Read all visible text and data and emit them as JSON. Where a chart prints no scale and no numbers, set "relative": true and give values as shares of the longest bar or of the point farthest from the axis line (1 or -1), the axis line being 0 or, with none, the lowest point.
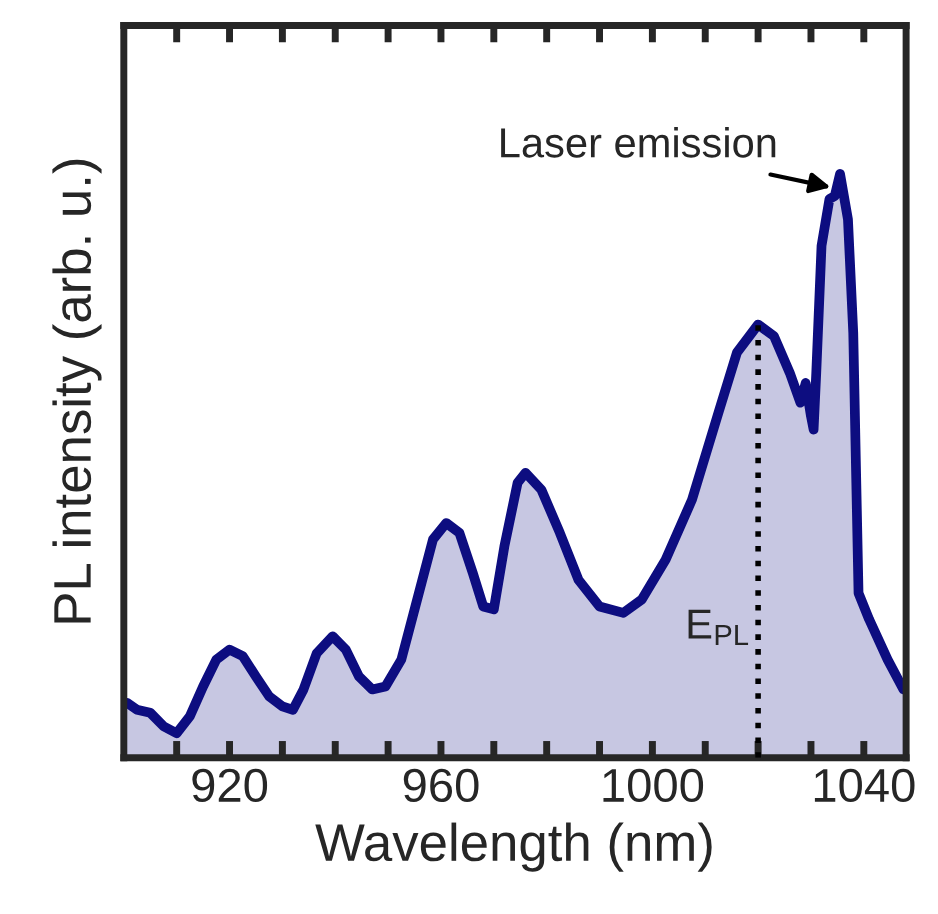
{
  "chart_data": {
    "type": "area",
    "xlabel": "Wavelength (nm)",
    "ylabel": "PL intensity (arb. u.)",
    "relative": true,
    "tick_labels": "x",
    "xlim": [
      900,
      1048
    ],
    "xticks": [
      {
        "value": 910,
        "label": null
      },
      920,
      {
        "value": 930,
        "label": null
      },
      {
        "value": 940,
        "label": null
      },
      {
        "value": 950,
        "label": null
      },
      960,
      {
        "value": 970,
        "label": null
      },
      {
        "value": 980,
        "label": null
      },
      {
        "value": 990,
        "label": null
      },
      1000,
      {
        "value": 1010,
        "label": null
      },
      {
        "value": 1020,
        "label": null
      },
      {
        "value": 1030,
        "label": null
      },
      1040
    ],
    "series": [
      {
        "color": "#0d0d80",
        "x": [
          900.6,
          902.5,
          905,
          907.5,
          910,
          912.5,
          915,
          917.5,
          920,
          922.5,
          925,
          927.5,
          930,
          932,
          934,
          936.5,
          939.5,
          942,
          944.5,
          947,
          949.5,
          952.5,
          955.5,
          958.5,
          961,
          963.5,
          966,
          968,
          970,
          972,
          974.5,
          976,
          979,
          982.5,
          986,
          990,
          994.5,
          998,
          1002.5,
          1007.5,
          1012.5,
          1016,
          1020,
          1023,
          1026,
          1028,
          1029,
          1030,
          1030.5,
          1031,
          1032,
          1033.5,
          1034.5,
          1035.5,
          1037,
          1038,
          1039,
          1041,
          1044.5,
          1047.5
        ],
        "values": [
          0.094,
          0.082,
          0.077,
          0.054,
          0.042,
          0.071,
          0.122,
          0.168,
          0.185,
          0.174,
          0.139,
          0.105,
          0.088,
          0.082,
          0.117,
          0.179,
          0.208,
          0.185,
          0.139,
          0.117,
          0.122,
          0.168,
          0.271,
          0.374,
          0.402,
          0.385,
          0.317,
          0.259,
          0.254,
          0.362,
          0.471,
          0.488,
          0.459,
          0.385,
          0.305,
          0.259,
          0.248,
          0.271,
          0.339,
          0.442,
          0.591,
          0.694,
          0.742,
          0.722,
          0.659,
          0.608,
          0.642,
          0.585,
          0.562,
          0.659,
          0.877,
          0.957,
          0.962,
          1.0,
          0.922,
          0.728,
          0.282,
          0.237,
          0.168,
          0.117
        ]
      }
    ],
    "ref_lines": [
      {
        "axis": "x",
        "value": 1020,
        "label": "E$_{PL}$",
        "line_style": "dotted",
        "color": "#000000"
      }
    ],
    "annotations": [
      {
        "text": "Laser emission",
        "x": 1033.75,
        "y": 0.977
      }
    ]
  }
}
